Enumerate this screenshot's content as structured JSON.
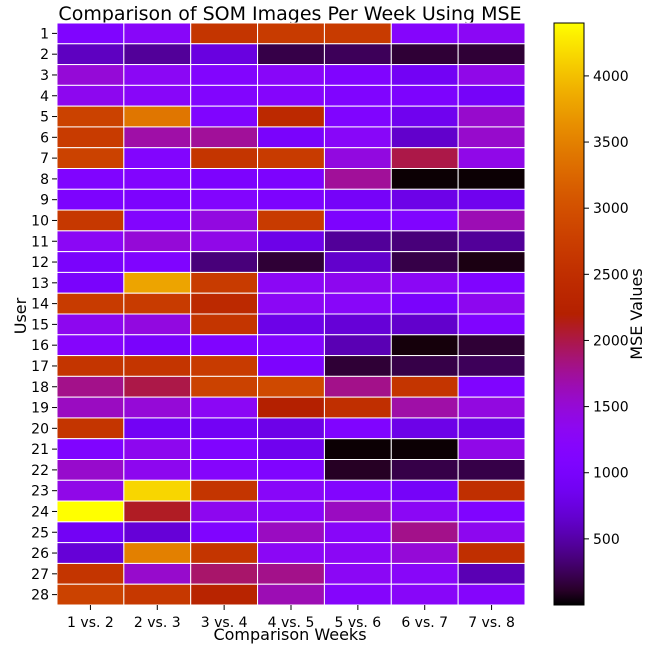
{
  "chart_data": {
    "type": "heatmap",
    "title": "Comparison of SOM Images Per Week Using MSE",
    "xlabel": "Comparison Weeks",
    "ylabel": "User",
    "colorbar_label": "MSE Values",
    "colormap": "gnuplot",
    "vmin": 0,
    "vmax": 4400,
    "colorbar_ticks": [
      500,
      1000,
      1500,
      2000,
      2500,
      3000,
      3500,
      4000
    ],
    "grid": true,
    "x_categories": [
      "1 vs. 2",
      "2 vs. 3",
      "3 vs. 4",
      "4 vs. 5",
      "5 vs. 6",
      "6 vs. 7",
      "7 vs. 8"
    ],
    "y_categories": [
      "1",
      "2",
      "3",
      "4",
      "5",
      "6",
      "7",
      "8",
      "9",
      "10",
      "11",
      "12",
      "13",
      "14",
      "15",
      "16",
      "17",
      "18",
      "19",
      "20",
      "21",
      "22",
      "23",
      "24",
      "25",
      "26",
      "27",
      "28"
    ],
    "values": [
      [
        1100,
        1250,
        2600,
        2700,
        2700,
        1200,
        1300
      ],
      [
        600,
        450,
        750,
        200,
        250,
        150,
        150
      ],
      [
        1500,
        1300,
        1150,
        1250,
        1100,
        900,
        1400
      ],
      [
        1350,
        1250,
        1150,
        1200,
        1100,
        1050,
        950
      ],
      [
        2800,
        3400,
        1100,
        2400,
        1100,
        850,
        1550
      ],
      [
        2700,
        1700,
        1750,
        1000,
        1250,
        650,
        1550
      ],
      [
        2800,
        1150,
        2600,
        2700,
        1450,
        2000,
        1400
      ],
      [
        1100,
        1150,
        1050,
        1050,
        1750,
        10,
        10
      ],
      [
        1050,
        1050,
        1150,
        1050,
        950,
        800,
        850
      ],
      [
        2650,
        1150,
        1450,
        2700,
        1050,
        1100,
        1650
      ],
      [
        1300,
        1500,
        1400,
        800,
        450,
        350,
        450
      ],
      [
        1000,
        1100,
        350,
        150,
        650,
        200,
        50
      ],
      [
        1000,
        3800,
        2700,
        1300,
        1350,
        1300,
        1100
      ],
      [
        2700,
        2700,
        2400,
        1300,
        1250,
        1000,
        1350
      ],
      [
        1350,
        1450,
        2600,
        800,
        700,
        650,
        1100
      ],
      [
        1200,
        1000,
        1100,
        1150,
        550,
        30,
        150
      ],
      [
        2600,
        2600,
        2700,
        1050,
        150,
        200,
        250
      ],
      [
        1800,
        2000,
        2800,
        2900,
        1800,
        2600,
        1100
      ],
      [
        1600,
        1500,
        1300,
        2200,
        2500,
        1700,
        1450
      ],
      [
        2600,
        900,
        900,
        800,
        1100,
        800,
        800
      ],
      [
        1100,
        1350,
        1100,
        850,
        10,
        10,
        1400
      ],
      [
        1550,
        1350,
        1200,
        1100,
        100,
        200,
        200
      ],
      [
        1400,
        4150,
        2600,
        1250,
        1150,
        950,
        2500
      ],
      [
        4400,
        2100,
        1350,
        1250,
        1600,
        1300,
        1100
      ],
      [
        900,
        700,
        1100,
        1600,
        1250,
        1800,
        1350
      ],
      [
        700,
        3500,
        2600,
        1300,
        1300,
        1500,
        2500
      ],
      [
        2600,
        1550,
        1900,
        1800,
        1300,
        1250,
        550
      ],
      [
        2800,
        2650,
        2300,
        1650,
        1200,
        1250,
        1200
      ]
    ]
  }
}
